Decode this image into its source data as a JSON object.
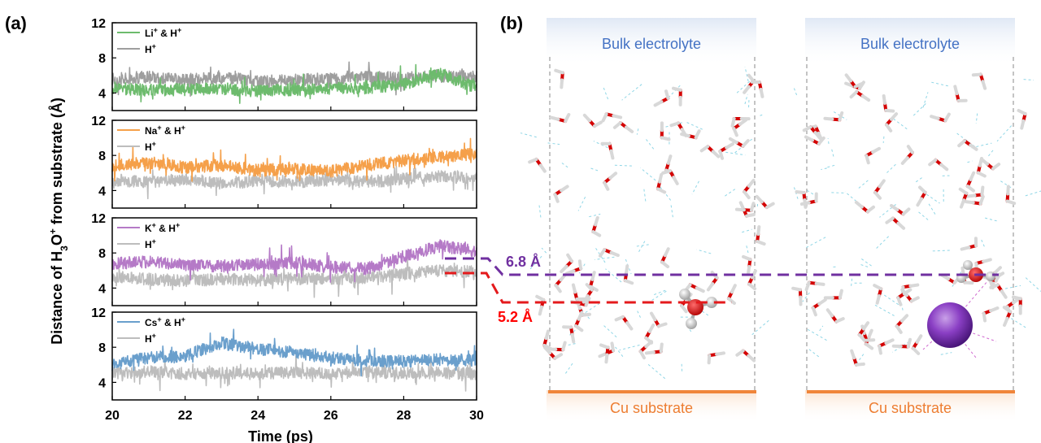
{
  "panel_a": {
    "label": "(a)",
    "ylabel_parts": [
      "Distance of H",
      "3",
      "O",
      "+",
      " from substrate (Å)"
    ],
    "xlabel": "Time (ps)",
    "xticks": [
      20,
      22,
      24,
      26,
      28,
      30
    ]
  },
  "panel_b": {
    "label": "(b)",
    "left_box": {
      "top_label": "Bulk electrolyte",
      "bottom_label": "Cu substrate"
    },
    "right_box": {
      "top_label": "Bulk electrolyte",
      "bottom_label": "Cu substrate"
    },
    "annotations": [
      {
        "text": "6.8 Å",
        "color": "#7030a0"
      },
      {
        "text": "5.2 Å",
        "color": "#ff0000"
      }
    ]
  },
  "colors": {
    "li": "#6dbb6d",
    "na": "#f5a04a",
    "k": "#b57ac7",
    "cs": "#6a9fcc",
    "h_green_panel": "#9e9e9e",
    "h": "#bdbdbd",
    "purple_dash": "#7030a0",
    "red_dash": "#e41a1c",
    "bulk_text": "#4472c4",
    "cu_text": "#ed7d31",
    "cu_bar": "#f0853a"
  },
  "chart_data": [
    {
      "type": "line",
      "xlim": [
        20,
        30
      ],
      "ylim": [
        2,
        12
      ],
      "yticks": [
        4,
        8,
        12
      ],
      "x": [
        20,
        21,
        22,
        23,
        24,
        25,
        26,
        27,
        28,
        29,
        30
      ],
      "series": [
        {
          "name": "Li⁺ & H⁺",
          "legend": [
            "Li",
            "+",
            " & H",
            "+"
          ],
          "values": [
            4.6,
            4.3,
            4.4,
            4.5,
            4.2,
            4.4,
            4.5,
            4.6,
            5.0,
            6.2,
            4.6
          ]
        },
        {
          "name": "H⁺",
          "legend": [
            "H",
            "+",
            "",
            ""
          ],
          "values": [
            5.6,
            5.8,
            5.5,
            5.7,
            5.4,
            5.5,
            5.6,
            5.8,
            5.7,
            5.9,
            5.8
          ]
        }
      ]
    },
    {
      "type": "line",
      "xlim": [
        20,
        30
      ],
      "ylim": [
        2,
        12
      ],
      "yticks": [
        4,
        8,
        12
      ],
      "x": [
        20,
        21,
        22,
        23,
        24,
        25,
        26,
        27,
        28,
        29,
        30
      ],
      "series": [
        {
          "name": "Na⁺ & H⁺",
          "legend": [
            "Na",
            "+",
            " & H",
            "+"
          ],
          "values": [
            6.8,
            7.2,
            6.6,
            6.9,
            6.3,
            6.5,
            6.2,
            6.9,
            7.4,
            7.8,
            8.2
          ]
        },
        {
          "name": "H⁺",
          "legend": [
            "H",
            "+",
            "",
            ""
          ],
          "values": [
            5.2,
            5.0,
            5.3,
            4.8,
            5.1,
            5.0,
            5.2,
            5.0,
            5.3,
            5.6,
            5.4
          ]
        }
      ]
    },
    {
      "type": "line",
      "xlim": [
        20,
        30
      ],
      "ylim": [
        2,
        12
      ],
      "yticks": [
        4,
        8,
        12
      ],
      "x": [
        20,
        21,
        22,
        23,
        24,
        25,
        26,
        27,
        28,
        29,
        30
      ],
      "series": [
        {
          "name": "K⁺ & H⁺",
          "legend": [
            "K",
            "+",
            " & H",
            "+"
          ],
          "values": [
            6.8,
            7.0,
            6.6,
            6.5,
            6.7,
            6.9,
            6.4,
            6.2,
            7.6,
            8.8,
            8.2
          ]
        },
        {
          "name": "H⁺",
          "legend": [
            "H",
            "+",
            "",
            ""
          ],
          "values": [
            5.4,
            5.0,
            4.8,
            5.0,
            4.9,
            5.1,
            5.0,
            5.2,
            5.6,
            6.0,
            5.8
          ]
        }
      ]
    },
    {
      "type": "line",
      "xlim": [
        20,
        30
      ],
      "ylim": [
        2,
        12
      ],
      "yticks": [
        4,
        8,
        12
      ],
      "x": [
        20,
        21,
        22,
        23,
        24,
        25,
        26,
        27,
        28,
        29,
        30
      ],
      "series": [
        {
          "name": "Cs⁺ & H⁺",
          "legend": [
            "Cs",
            "+",
            " & H",
            "+"
          ],
          "values": [
            6.0,
            6.8,
            7.0,
            8.5,
            7.8,
            7.4,
            6.8,
            6.5,
            6.4,
            6.6,
            6.5
          ]
        },
        {
          "name": "H⁺",
          "legend": [
            "H",
            "+",
            "",
            ""
          ],
          "values": [
            5.0,
            5.2,
            5.0,
            5.1,
            5.0,
            5.1,
            5.0,
            5.2,
            5.0,
            5.1,
            5.0
          ]
        }
      ]
    }
  ]
}
